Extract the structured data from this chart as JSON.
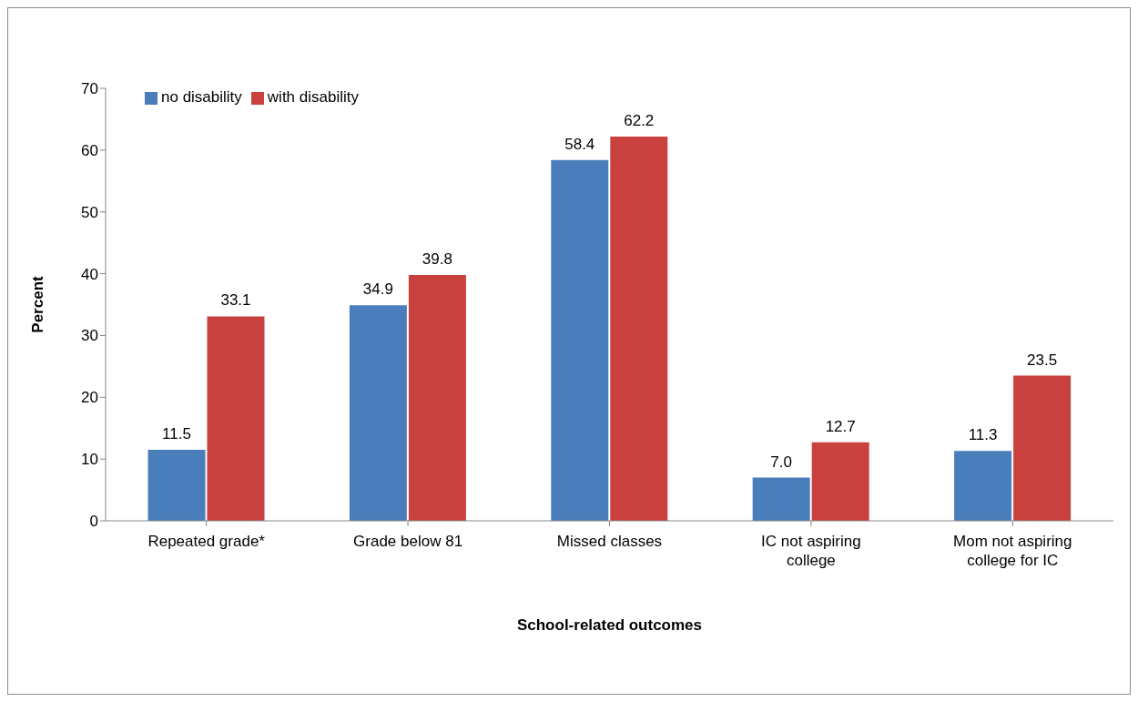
{
  "chart_data": {
    "type": "bar",
    "xlabel": "School-related outcomes",
    "ylabel": "Percent",
    "categories": [
      "Repeated grade*",
      "Grade below 81",
      "Missed classes",
      "IC not aspiring college",
      "Mom not aspiring college for IC"
    ],
    "series": [
      {
        "name": "no disability",
        "color": "#4a7ebb",
        "values": [
          11.5,
          34.9,
          58.4,
          7.0,
          11.3
        ],
        "value_labels": [
          "11.5",
          "34.9",
          "58.4",
          "7.0",
          "11.3"
        ]
      },
      {
        "name": "with disability",
        "color": "#c9413e",
        "values": [
          33.1,
          39.8,
          62.2,
          12.7,
          23.5
        ],
        "value_labels": [
          "33.1",
          "39.8",
          "62.2",
          "12.7",
          "23.5"
        ]
      }
    ],
    "ylim": [
      0,
      70
    ],
    "yticks": [
      0,
      10,
      20,
      30,
      40,
      50,
      60,
      70
    ],
    "legend": "top left"
  }
}
